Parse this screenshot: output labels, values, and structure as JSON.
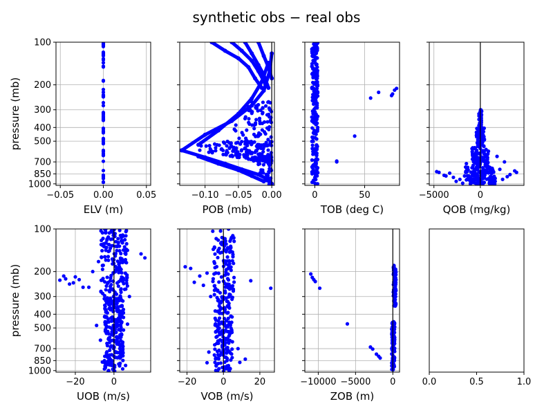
{
  "figure": {
    "title": "synthetic obs − real obs"
  },
  "chart_data": [
    {
      "type": "scatter",
      "name": "elv",
      "xlabel": "ELV (m)",
      "ylabel": "pressure (mb)",
      "xlim": [
        -0.055,
        0.055
      ],
      "xticks": [
        -0.05,
        0.0,
        0.05
      ],
      "xtick_labels": [
        "−0.05",
        "0.00",
        "0.05"
      ],
      "ylim": [
        1025,
        100
      ],
      "yscale": "log",
      "yticks": [
        100,
        200,
        300,
        400,
        500,
        700,
        850,
        1000
      ],
      "ytick_labels": [
        "100",
        "200",
        "300",
        "400",
        "500",
        "700",
        "850",
        "1000"
      ],
      "show_yticklabels": true,
      "grid": true,
      "zero_line": false,
      "color": "#0000ff",
      "point_groups": [
        {
          "x": [
            0.0,
            0.0
          ],
          "y_range": [
            100,
            1010
          ],
          "count": 60
        }
      ]
    },
    {
      "type": "scatter",
      "name": "pob",
      "xlabel": "POB (mb)",
      "xlim": [
        -0.138,
        0.004
      ],
      "xticks": [
        -0.1,
        -0.05,
        0.0
      ],
      "xtick_labels": [
        "−0.10",
        "−0.05",
        "0.00"
      ],
      "ylim": [
        1025,
        100
      ],
      "yscale": "log",
      "yticks": [
        100,
        200,
        300,
        400,
        500,
        700,
        850,
        1000
      ],
      "ytick_labels": [
        "100",
        "200",
        "300",
        "400",
        "500",
        "700",
        "850",
        "1000"
      ],
      "show_yticklabels": false,
      "grid": true,
      "zero_line": true,
      "color": "#0000ff",
      "lines": [
        {
          "x": [
            -0.135,
            -0.1,
            -0.06,
            -0.03,
            -0.012,
            -0.003,
            0.0
          ],
          "y": [
            580,
            450,
            360,
            280,
            220,
            160,
            120
          ]
        },
        {
          "x": [
            -0.135,
            -0.1,
            -0.07,
            -0.045,
            -0.02,
            -0.006,
            0.0
          ],
          "y": [
            580,
            650,
            720,
            790,
            860,
            930,
            1000
          ]
        },
        {
          "x": [
            -0.11,
            -0.08,
            -0.05,
            -0.03,
            -0.015,
            -0.005
          ],
          "y": [
            530,
            420,
            320,
            250,
            190,
            140
          ]
        },
        {
          "x": [
            -0.11,
            -0.08,
            -0.05,
            -0.03,
            -0.012
          ],
          "y": [
            640,
            720,
            800,
            880,
            960
          ]
        },
        {
          "x": [
            -0.09,
            -0.07,
            -0.05,
            -0.035,
            -0.025,
            -0.015
          ],
          "y": [
            100,
            115,
            130,
            150,
            180,
            210
          ]
        },
        {
          "x": [
            -0.06,
            -0.045,
            -0.03,
            -0.02,
            -0.01
          ],
          "y": [
            100,
            115,
            135,
            160,
            195
          ]
        },
        {
          "x": [
            -0.04,
            -0.03,
            -0.02,
            -0.012,
            -0.005
          ],
          "y": [
            100,
            120,
            145,
            170,
            210
          ]
        },
        {
          "x": [
            -0.02,
            -0.012,
            -0.005,
            0.0
          ],
          "y": [
            100,
            125,
            150,
            180
          ]
        }
      ],
      "point_groups": [
        {
          "x": [
            -0.13,
            0.0
          ],
          "y_range": [
            500,
            700
          ],
          "count": 140,
          "shape": "triangle-right"
        },
        {
          "x": [
            -0.06,
            0.0
          ],
          "y_range": [
            260,
            1010
          ],
          "count": 160,
          "shape": "triangle-right"
        }
      ]
    },
    {
      "type": "scatter",
      "name": "tob",
      "xlabel": "TOB (deg C)",
      "xlim": [
        -10,
        85
      ],
      "xticks": [
        0,
        50
      ],
      "xtick_labels": [
        "0",
        "50"
      ],
      "ylim": [
        1025,
        100
      ],
      "yscale": "log",
      "yticks": [
        100,
        200,
        300,
        400,
        500,
        700,
        850,
        1000
      ],
      "ytick_labels": [
        "100",
        "200",
        "300",
        "400",
        "500",
        "700",
        "850",
        "1000"
      ],
      "show_yticklabels": false,
      "grid": true,
      "zero_line": false,
      "color": "#0000ff",
      "points": [
        [
          82,
          212
        ],
        [
          80,
          218
        ],
        [
          78,
          232
        ],
        [
          77,
          238
        ],
        [
          64,
          226
        ],
        [
          56,
          248
        ],
        [
          40,
          460
        ],
        [
          22,
          690
        ],
        [
          22,
          700
        ]
      ],
      "point_groups": [
        {
          "x": [
            -3,
            3
          ],
          "y_range": [
            100,
            1010
          ],
          "count": 230
        }
      ]
    },
    {
      "type": "scatter",
      "name": "qob",
      "xlabel": "QOB (mg/kg)",
      "xlim": [
        -5500,
        4700
      ],
      "xticks": [
        -5000,
        0
      ],
      "xtick_labels": [
        "−5000",
        "0"
      ],
      "ylim": [
        1025,
        100
      ],
      "yscale": "log",
      "yticks": [
        100,
        200,
        300,
        400,
        500,
        700,
        850,
        1000
      ],
      "ytick_labels": [
        "100",
        "200",
        "300",
        "400",
        "500",
        "700",
        "850",
        "1000"
      ],
      "show_yticklabels": false,
      "grid": true,
      "zero_line": true,
      "color": "#0000ff",
      "points": [
        [
          -4700,
          820
        ],
        [
          -4450,
          830
        ],
        [
          -3900,
          870
        ],
        [
          -3700,
          880
        ],
        [
          -3300,
          840
        ],
        [
          -2900,
          900
        ],
        [
          -2200,
          930
        ],
        [
          -1700,
          880
        ],
        [
          3200,
          860
        ],
        [
          3700,
          810
        ],
        [
          3900,
          830
        ],
        [
          2900,
          890
        ],
        [
          2400,
          930
        ],
        [
          2100,
          790
        ],
        [
          2600,
          700
        ],
        [
          1600,
          960
        ],
        [
          -2600,
          960
        ],
        [
          -1900,
          990
        ],
        [
          1800,
          640
        ],
        [
          -1500,
          720
        ]
      ],
      "point_groups": [
        {
          "x": [
            -150,
            150
          ],
          "y_range": [
            300,
            400
          ],
          "count": 40
        },
        {
          "x": [
            -450,
            450
          ],
          "y_range": [
            400,
            550
          ],
          "count": 70
        },
        {
          "x": [
            -900,
            900
          ],
          "y_range": [
            550,
            760
          ],
          "count": 100
        },
        {
          "x": [
            -1600,
            1600
          ],
          "y_range": [
            760,
            1010
          ],
          "count": 140
        }
      ]
    },
    {
      "type": "scatter",
      "name": "uob",
      "xlabel": "UOB (m/s)",
      "ylabel": "pressure (mb)",
      "xlim": [
        -30,
        19
      ],
      "xticks": [
        -20,
        0
      ],
      "xtick_labels": [
        "−20",
        "0"
      ],
      "ylim": [
        1025,
        100
      ],
      "yscale": "log",
      "yticks": [
        100,
        200,
        300,
        400,
        500,
        700,
        850,
        1000
      ],
      "ytick_labels": [
        "100",
        "200",
        "300",
        "400",
        "500",
        "700",
        "850",
        "1000"
      ],
      "show_yticklabels": true,
      "grid": true,
      "zero_line": true,
      "color": "#0000ff",
      "points": [
        [
          -28,
          230
        ],
        [
          -26,
          215
        ],
        [
          -25,
          225
        ],
        [
          -23,
          245
        ],
        [
          -21,
          240
        ],
        [
          -20,
          218
        ],
        [
          -18,
          228
        ],
        [
          -16,
          258
        ],
        [
          -13,
          258
        ],
        [
          -11,
          200
        ],
        [
          -9,
          480
        ],
        [
          16,
          160
        ],
        [
          14,
          150
        ],
        [
          8,
          300
        ],
        [
          7,
          470
        ],
        [
          -7,
          610
        ],
        [
          -6,
          870
        ],
        [
          6,
          920
        ],
        [
          -8,
          170
        ]
      ],
      "point_groups": [
        {
          "x": [
            -7,
            7
          ],
          "y_range": [
            100,
            300
          ],
          "count": 170
        },
        {
          "x": [
            -5,
            5
          ],
          "y_range": [
            300,
            1010
          ],
          "count": 250
        }
      ]
    },
    {
      "type": "scatter",
      "name": "vob",
      "xlabel": "VOB (m/s)",
      "xlim": [
        -24,
        28
      ],
      "xticks": [
        -20,
        0,
        20
      ],
      "xtick_labels": [
        "−20",
        "0",
        "20"
      ],
      "ylim": [
        1025,
        100
      ],
      "yscale": "log",
      "yticks": [
        100,
        200,
        300,
        400,
        500,
        700,
        850,
        1000
      ],
      "ytick_labels": [
        "100",
        "200",
        "300",
        "400",
        "500",
        "700",
        "850",
        "1000"
      ],
      "show_yticklabels": false,
      "grid": true,
      "zero_line": true,
      "color": "#0000ff",
      "points": [
        [
          -21,
          185
        ],
        [
          -18,
          190
        ],
        [
          -16,
          238
        ],
        [
          -13,
          215
        ],
        [
          -11,
          250
        ],
        [
          -9,
          205
        ],
        [
          26,
          262
        ],
        [
          15,
          232
        ],
        [
          12,
          830
        ],
        [
          9,
          875
        ],
        [
          -9,
          880
        ],
        [
          -8,
          740
        ],
        [
          -7,
          300
        ],
        [
          8,
          700
        ]
      ],
      "point_groups": [
        {
          "x": [
            -6,
            6
          ],
          "y_range": [
            100,
            300
          ],
          "count": 110
        },
        {
          "x": [
            -5,
            5
          ],
          "y_range": [
            300,
            1010
          ],
          "count": 170
        }
      ]
    },
    {
      "type": "scatter",
      "name": "zob",
      "xlabel": "ZOB (m)",
      "xlim": [
        -11800,
        900
      ],
      "xticks": [
        -10000,
        -5000,
        0
      ],
      "xtick_labels": [
        "−10000",
        "−5000",
        "0"
      ],
      "ylim": [
        1025,
        100
      ],
      "yscale": "log",
      "yticks": [
        100,
        200,
        300,
        400,
        500,
        700,
        850,
        1000
      ],
      "ytick_labels": [
        "100",
        "200",
        "300",
        "400",
        "500",
        "700",
        "850",
        "1000"
      ],
      "show_yticklabels": false,
      "grid": true,
      "zero_line": true,
      "color": "#0000ff",
      "points": [
        [
          -11000,
          208
        ],
        [
          -10800,
          220
        ],
        [
          -10600,
          228
        ],
        [
          -10400,
          235
        ],
        [
          -9800,
          262
        ],
        [
          -6100,
          468
        ],
        [
          -3000,
          682
        ],
        [
          -2700,
          705
        ],
        [
          -2200,
          765
        ],
        [
          -1900,
          792
        ],
        [
          -1700,
          815
        ]
      ],
      "point_groups": [
        {
          "x": [
            60,
            420
          ],
          "y_range": [
            180,
            350
          ],
          "count": 90
        },
        {
          "x": [
            -150,
            250
          ],
          "y_range": [
            450,
            1000
          ],
          "count": 120
        }
      ]
    },
    {
      "type": "scatter",
      "name": "empty",
      "xlim": [
        0,
        1
      ],
      "xticks": [
        0,
        0.5,
        1
      ],
      "xtick_labels": [
        "0.0",
        "0.5",
        "1.0"
      ],
      "ylim": [
        1025,
        100
      ],
      "yscale": "log",
      "yticks": [
        100,
        200,
        300,
        400,
        500,
        700,
        850,
        1000
      ],
      "ytick_labels": [
        "100",
        "200",
        "300",
        "400",
        "500",
        "700",
        "850",
        "1000"
      ],
      "show_yticklabels": false,
      "grid": false,
      "zero_line": false,
      "show_yticks": false,
      "color": "#0000ff"
    }
  ]
}
